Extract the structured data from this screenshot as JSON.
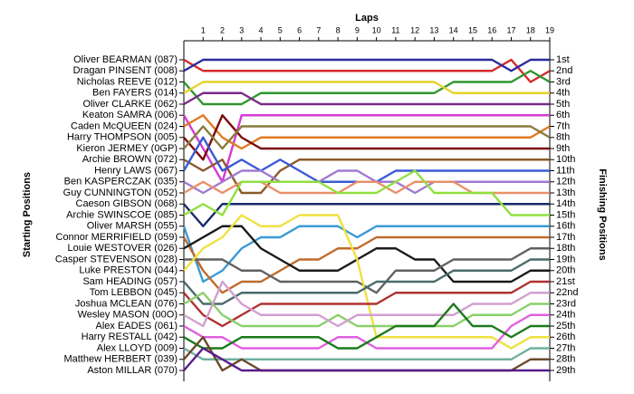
{
  "chart_data": {
    "type": "line",
    "title": "Laps",
    "ylabel": "Starting Positions",
    "y2label": "Finishing Positions",
    "x": [
      0,
      1,
      2,
      3,
      4,
      5,
      6,
      7,
      8,
      9,
      10,
      11,
      12,
      13,
      14,
      15,
      16,
      17,
      18,
      19
    ],
    "xlim": [
      0,
      19
    ],
    "xticks": [
      1,
      2,
      3,
      4,
      5,
      6,
      7,
      8,
      9,
      10,
      11,
      12,
      13,
      14,
      15,
      16,
      17,
      18,
      19
    ],
    "ylim": [
      30,
      -1
    ],
    "yticks": [
      {
        "value": 1,
        "label": "1st"
      },
      {
        "value": 2,
        "label": "2nd"
      },
      {
        "value": 3,
        "label": "3rd"
      },
      {
        "value": 4,
        "label": "4th"
      },
      {
        "value": 5,
        "label": "5th"
      },
      {
        "value": 6,
        "label": "6th"
      },
      {
        "value": 7,
        "label": "7th"
      },
      {
        "value": 8,
        "label": "8th"
      },
      {
        "value": 9,
        "label": "9th"
      },
      {
        "value": 10,
        "label": "10th"
      },
      {
        "value": 11,
        "label": "11th"
      },
      {
        "value": 12,
        "label": "12th"
      },
      {
        "value": 13,
        "label": "13th"
      },
      {
        "value": 14,
        "label": "14th"
      },
      {
        "value": 15,
        "label": "15th"
      },
      {
        "value": 16,
        "label": "16th"
      },
      {
        "value": 17,
        "label": "17th"
      },
      {
        "value": 18,
        "label": "18th"
      },
      {
        "value": 19,
        "label": "19th"
      },
      {
        "value": 20,
        "label": "20th"
      },
      {
        "value": 21,
        "label": "21st"
      },
      {
        "value": 22,
        "label": "22nd"
      },
      {
        "value": 23,
        "label": "23rd"
      },
      {
        "value": 24,
        "label": "24th"
      },
      {
        "value": 25,
        "label": "25th"
      },
      {
        "value": 26,
        "label": "26th"
      },
      {
        "value": 27,
        "label": "27th"
      },
      {
        "value": 28,
        "label": "28th"
      },
      {
        "value": 29,
        "label": "29th"
      }
    ],
    "series": [
      {
        "name": "Oliver BEARMAN (087)",
        "color": "#d42a2a",
        "values": [
          1,
          2,
          2,
          2,
          2,
          2,
          2,
          2,
          2,
          2,
          2,
          2,
          2,
          2,
          2,
          2,
          2,
          1,
          3,
          2
        ]
      },
      {
        "name": "Dragan PINSENT (008)",
        "color": "#2a2a9e",
        "values": [
          2,
          1,
          1,
          1,
          1,
          1,
          1,
          1,
          1,
          1,
          1,
          1,
          1,
          1,
          1,
          1,
          1,
          2,
          1,
          1
        ]
      },
      {
        "name": "Nicholas REEVE (012)",
        "color": "#2e962e",
        "values": [
          3,
          5,
          5,
          5,
          4,
          4,
          4,
          4,
          4,
          4,
          4,
          4,
          4,
          4,
          3,
          3,
          3,
          3,
          2,
          3
        ]
      },
      {
        "name": "Ben FAYERS (014)",
        "color": "#e6d22a",
        "values": [
          4,
          3,
          3,
          3,
          3,
          3,
          3,
          3,
          3,
          3,
          3,
          3,
          3,
          3,
          4,
          4,
          4,
          4,
          4,
          4
        ]
      },
      {
        "name": "Oliver CLARKE (062)",
        "color": "#7a2a8a",
        "values": [
          5,
          4,
          4,
          4,
          5,
          5,
          5,
          5,
          5,
          5,
          5,
          5,
          5,
          5,
          5,
          5,
          5,
          5,
          5,
          5
        ]
      },
      {
        "name": "Keaton SAMRA (006)",
        "color": "#d63ad6",
        "values": [
          6,
          9,
          12,
          6,
          6,
          6,
          6,
          6,
          6,
          6,
          6,
          6,
          6,
          6,
          6,
          6,
          6,
          6,
          6,
          6
        ]
      },
      {
        "name": "Caden McQUEEN (024)",
        "color": "#e07a20",
        "values": [
          7,
          6,
          8,
          9,
          8,
          8,
          8,
          8,
          8,
          8,
          8,
          8,
          8,
          8,
          8,
          8,
          8,
          8,
          8,
          7
        ]
      },
      {
        "name": "Harry THOMPSON (005)",
        "color": "#7a0a0a",
        "values": [
          8,
          10,
          6,
          8,
          9,
          9,
          9,
          9,
          9,
          9,
          9,
          9,
          9,
          9,
          9,
          9,
          9,
          9,
          9,
          9
        ]
      },
      {
        "name": "Kieron JERMEY (0GP)",
        "color": "#8a7a3a",
        "values": [
          9,
          7,
          9,
          7,
          7,
          7,
          7,
          7,
          7,
          7,
          7,
          7,
          7,
          7,
          7,
          7,
          7,
          7,
          7,
          8
        ]
      },
      {
        "name": "Archie BROWN (072)",
        "color": "#8a5a2a",
        "values": [
          10,
          11,
          10,
          13,
          13,
          11,
          10,
          10,
          10,
          10,
          10,
          10,
          10,
          10,
          10,
          10,
          10,
          10,
          10,
          10
        ]
      },
      {
        "name": "Henry LAWS (067)",
        "color": "#3a5ad6",
        "values": [
          11,
          8,
          11,
          10,
          11,
          10,
          11,
          12,
          12,
          12,
          12,
          11,
          11,
          11,
          11,
          11,
          11,
          11,
          11,
          11
        ]
      },
      {
        "name": "Ben KASPERCZAK (035)",
        "color": "#a07ad0",
        "values": [
          12,
          13,
          12,
          11,
          11,
          12,
          12,
          12,
          11,
          11,
          12,
          12,
          13,
          12,
          12,
          12,
          12,
          12,
          12,
          12
        ]
      },
      {
        "name": "Guy CUNNINGTON (052)",
        "color": "#e8906a",
        "values": [
          13,
          12,
          13,
          12,
          12,
          13,
          13,
          13,
          13,
          12,
          12,
          13,
          12,
          12,
          12,
          13,
          13,
          13,
          13,
          13
        ]
      },
      {
        "name": "Caeson GIBSON (068)",
        "color": "#1a2a6a",
        "values": [
          14,
          16,
          14,
          14,
          14,
          14,
          14,
          14,
          14,
          14,
          14,
          14,
          14,
          14,
          14,
          14,
          14,
          14,
          14,
          14
        ]
      },
      {
        "name": "Archie SWINSCOE (085)",
        "color": "#90e040",
        "values": [
          15,
          14,
          15,
          12,
          12,
          12,
          12,
          12,
          13,
          13,
          13,
          12,
          11,
          13,
          13,
          13,
          13,
          15,
          15,
          15
        ]
      },
      {
        "name": "Oliver MARSH (055)",
        "color": "#3a9ad6",
        "values": [
          16,
          21,
          20,
          18,
          17,
          17,
          16,
          16,
          16,
          17,
          16,
          16,
          16,
          16,
          16,
          16,
          16,
          16,
          16,
          16
        ]
      },
      {
        "name": "Connor MERRIFIELD (059)",
        "color": "#c06a2a",
        "values": [
          17,
          20,
          22,
          21,
          21,
          20,
          19,
          19,
          18,
          18,
          17,
          17,
          17,
          17,
          17,
          17,
          17,
          17,
          17,
          17
        ]
      },
      {
        "name": "Louie WESTOVER (026)",
        "color": "#1a1a1a",
        "values": [
          18,
          17,
          16,
          16,
          18,
          19,
          20,
          20,
          20,
          19,
          18,
          18,
          19,
          19,
          21,
          21,
          21,
          21,
          20,
          20
        ]
      },
      {
        "name": "Casper STEVENSON (028)",
        "color": "#606060",
        "values": [
          19,
          19,
          19,
          20,
          20,
          21,
          21,
          21,
          21,
          21,
          22,
          20,
          20,
          20,
          19,
          19,
          19,
          19,
          18,
          18
        ]
      },
      {
        "name": "Luke PRESTON (044)",
        "color": "#f0e040",
        "values": [
          20,
          18,
          17,
          15,
          16,
          16,
          15,
          15,
          15,
          19,
          26,
          26,
          26,
          26,
          26,
          26,
          26,
          27,
          26,
          26
        ]
      },
      {
        "name": "Sam HEADING (057)",
        "color": "#4a6a6a",
        "values": [
          21,
          23,
          23,
          22,
          22,
          22,
          22,
          22,
          22,
          22,
          21,
          21,
          21,
          21,
          20,
          20,
          20,
          20,
          19,
          19
        ]
      },
      {
        "name": "Tom LEBBON (045)",
        "color": "#b03030",
        "values": [
          22,
          24,
          25,
          24,
          23,
          23,
          23,
          23,
          23,
          23,
          23,
          22,
          22,
          22,
          22,
          22,
          22,
          22,
          21,
          21
        ]
      },
      {
        "name": "Joshua MCLEAN (076)",
        "color": "#8ad06a",
        "values": [
          23,
          22,
          24,
          25,
          25,
          25,
          25,
          25,
          24,
          25,
          25,
          25,
          25,
          25,
          25,
          24,
          24,
          24,
          23,
          23
        ]
      },
      {
        "name": "Wesley MASON (00O)",
        "color": "#d0a0d0",
        "values": [
          24,
          25,
          21,
          23,
          24,
          24,
          24,
          24,
          25,
          24,
          24,
          24,
          24,
          24,
          24,
          23,
          23,
          23,
          22,
          22
        ]
      },
      {
        "name": "Alex EADES (061)",
        "color": "#e060e0",
        "values": [
          25,
          26,
          26,
          27,
          27,
          27,
          27,
          27,
          26,
          26,
          27,
          27,
          27,
          27,
          27,
          27,
          27,
          25,
          24,
          24
        ]
      },
      {
        "name": "Harry RESTALL (042)",
        "color": "#1a7a1a",
        "values": [
          26,
          27,
          27,
          26,
          26,
          26,
          26,
          26,
          27,
          27,
          26,
          25,
          25,
          25,
          23,
          25,
          25,
          26,
          25,
          25
        ]
      },
      {
        "name": "Alex LLOYD (009)",
        "color": "#70b0a0",
        "values": [
          27,
          28,
          28,
          28,
          28,
          28,
          28,
          28,
          28,
          28,
          28,
          28,
          28,
          28,
          28,
          28,
          28,
          28,
          27,
          27
        ]
      },
      {
        "name": "Matthew HERBERT (039)",
        "color": "#6a4a2a",
        "values": [
          28,
          26,
          29,
          28,
          29,
          29,
          29,
          29,
          29,
          29,
          29,
          29,
          29,
          29,
          29,
          29,
          29,
          29,
          28,
          28
        ]
      },
      {
        "name": "Aston MILLAR (070)",
        "color": "#5a1a8a",
        "values": [
          29,
          27,
          28,
          29,
          29,
          29,
          29,
          29,
          29,
          29,
          29,
          29,
          29,
          29,
          29,
          29,
          29,
          29,
          29,
          29
        ]
      }
    ]
  }
}
